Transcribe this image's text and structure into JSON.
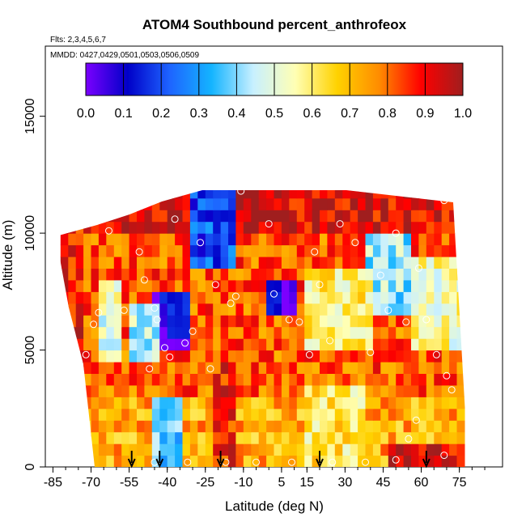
{
  "chart_data": {
    "type": "heatmap",
    "title": "ATOM4 Southbound percent_anthrofeox",
    "annotations": [
      "Flts: 2,3,4,5,6,7",
      "MMDD: 0427,0429,0501,0503,0506,0509"
    ],
    "xlabel": "Latitude (deg N)",
    "ylabel": "Altitude (m)",
    "xlim": [
      -88,
      92
    ],
    "ylim": [
      0,
      18000
    ],
    "x_ticks": [
      -85,
      -70,
      -55,
      -40,
      -25,
      -10,
      5,
      15,
      30,
      45,
      60,
      75
    ],
    "x_tick_labels": [
      "-85",
      "-70",
      "-55",
      "-40",
      "-25",
      "-10",
      "5",
      "15",
      "30",
      "45",
      "60",
      "75"
    ],
    "y_ticks": [
      0,
      5000,
      10000,
      15000
    ],
    "y_tick_labels": [
      "0",
      "5000",
      "10000",
      "15000"
    ],
    "colorbar": {
      "ticks": [
        0.0,
        0.1,
        0.2,
        0.3,
        0.4,
        0.5,
        0.6,
        0.7,
        0.8,
        0.9,
        1.0
      ],
      "tick_labels": [
        "0.0",
        "0.1",
        "0.2",
        "0.3",
        "0.4",
        "0.5",
        "0.6",
        "0.7",
        "0.8",
        "0.9",
        "1.0"
      ],
      "stops": [
        "#7b00ff",
        "#0000c8",
        "#1e64ff",
        "#14b4ff",
        "#c8f0ff",
        "#ffffb4",
        "#ffd200",
        "#ff8c00",
        "#ff0000",
        "#a01e1e"
      ]
    },
    "profile_arrows_lat": [
      -54,
      -43,
      -19,
      20,
      62
    ],
    "grid": false,
    "colorbar_placement": "top"
  }
}
